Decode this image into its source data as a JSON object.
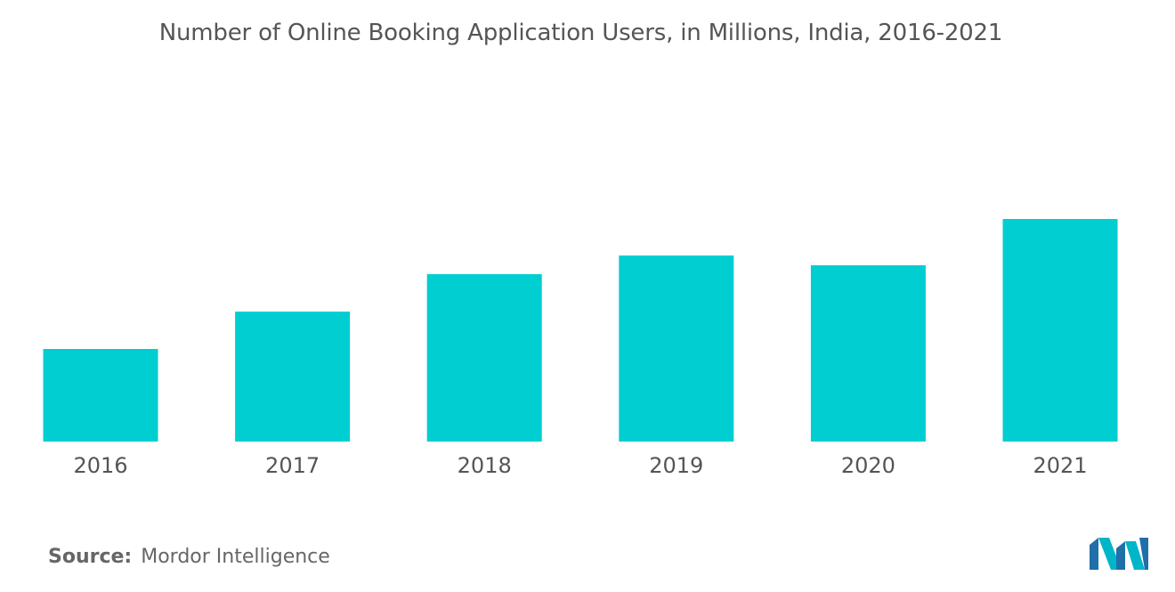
{
  "chart_data": {
    "type": "bar",
    "title": "Number of Online Booking Application Users, in Millions, India, 2016-2021",
    "categories": [
      "2016",
      "2017",
      "2018",
      "2019",
      "2020",
      "2021"
    ],
    "values": [
      104,
      146,
      188,
      209,
      198,
      250
    ],
    "bar_color": "#00CED1",
    "ylim": [
      0,
      300
    ],
    "grid": false,
    "legend": "none"
  },
  "source": {
    "label": "Source:",
    "text": "Mordor Intelligence"
  },
  "logo": {
    "icon": "mordor-intelligence-logo",
    "colors": [
      "#1f6fa8",
      "#00b5c8"
    ]
  }
}
